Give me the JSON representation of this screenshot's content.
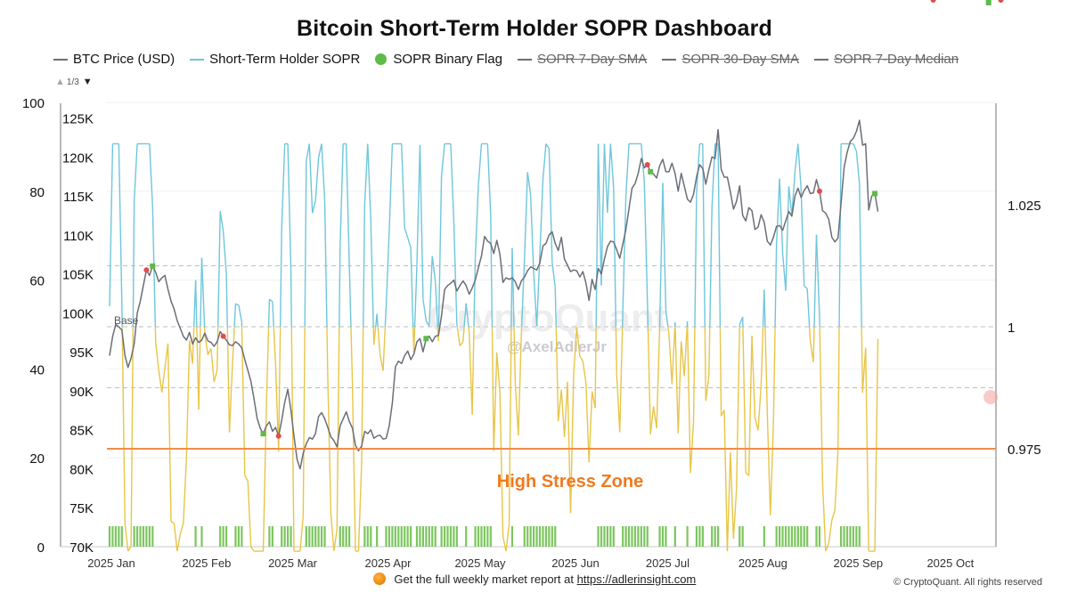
{
  "title": "Bitcoin Short-Term Holder SOPR Dashboard",
  "legend": [
    {
      "label": "BTC Price (USD)",
      "marker": "line",
      "color": "#6b6e78",
      "enabled": true
    },
    {
      "label": "Short-Term Holder SOPR",
      "marker": "line",
      "color": "#6ec6dc",
      "enabled": true
    },
    {
      "label": "SOPR Binary Flag",
      "marker": "dot",
      "color": "#5dbb4a",
      "enabled": true
    },
    {
      "label": "SOPR 7-Day SMA",
      "marker": "line",
      "color": "#6b6e78",
      "enabled": false
    },
    {
      "label": "SOPR 30-Day SMA",
      "marker": "line",
      "color": "#6b6e78",
      "enabled": false
    },
    {
      "label": "SOPR 7-Day Median",
      "marker": "line",
      "color": "#6b6e78",
      "enabled": false
    }
  ],
  "pager": {
    "text": "1/3"
  },
  "footer": {
    "text": "Get the full weekly market report at",
    "link": "https://adlerinsight.com"
  },
  "copyright": "© CryptoQuant. All rights reserved",
  "watermark": {
    "brand": "CryptoQuant",
    "handle": "@AxelAdlerJr"
  },
  "colors": {
    "price": "#6b6e78",
    "sopr_above": "#6ec6dc",
    "sopr_below": "#e8c547",
    "flag_bars": "#7cc65e",
    "buy_marker": "#5dbb4a",
    "sell_marker": "#e04b4b",
    "stress_line": "#f28c4a",
    "stress_text": "#f07a20"
  },
  "chart_data": {
    "type": "line",
    "x_axis": {
      "ticks": [
        "2025 Jan",
        "2025 Feb",
        "2025 Mar",
        "2025 Apr",
        "2025 May",
        "2025 Jun",
        "2025 Jul",
        "2025 Aug",
        "2025 Sep",
        "2025 Oct"
      ]
    },
    "y_left_outer": {
      "ticks": [
        0,
        20,
        40,
        60,
        80,
        100
      ],
      "ylim": [
        0,
        100
      ]
    },
    "y_left_inner": {
      "ticks": [
        "70K",
        "75K",
        "80K",
        "85K",
        "90K",
        "95K",
        "100K",
        "105K",
        "110K",
        "115K",
        "120K",
        "125K"
      ],
      "ylim": [
        70000,
        127000
      ]
    },
    "y_right": {
      "ticks": [
        "0.975",
        "1",
        "1.025"
      ],
      "ylim": [
        0.95,
        1.04
      ]
    },
    "annotations": {
      "base_label": "Base",
      "stress_zone_label": "High Stress Zone",
      "stress_level": 0.975
    },
    "series": [
      {
        "name": "BTC Price (USD)",
        "axis": "y_left_inner",
        "approx_daily_from_jan1": [
          94500,
          97000,
          98500,
          98200,
          97800,
          94500,
          93000,
          94200,
          96000,
          100000,
          101500,
          103500,
          105500,
          104800,
          106000,
          105200,
          104000,
          104500,
          104800,
          103000,
          101500,
          100500,
          99000,
          98000,
          97000,
          96500,
          97500,
          96000,
          96800,
          96200,
          96500,
          97400,
          96400,
          96200,
          95700,
          96300,
          97600,
          97000,
          96500,
          95900,
          95800,
          96300,
          96000,
          95500,
          94000,
          92600,
          91200,
          89000,
          86500,
          85200,
          84500,
          85500,
          86000,
          84800,
          85300,
          84200,
          86200,
          88500,
          90200,
          87500,
          84200,
          81200,
          80000,
          82000,
          83200,
          84000,
          83800,
          84500,
          86700,
          87200,
          86400,
          85300,
          84100,
          83600,
          82800,
          85500,
          86400,
          87300,
          86100,
          85200,
          83000,
          82300,
          82900,
          84800,
          84500,
          85000,
          83900,
          84200,
          84300,
          83800,
          83900,
          85500,
          88400,
          93100,
          93800,
          93500,
          94500,
          95100,
          94000,
          94700,
          96300,
          96700,
          95000,
          96700,
          97000,
          96300,
          97000,
          97100,
          99600,
          103000,
          103500,
          103800,
          104200,
          102800,
          103500,
          104100,
          103500,
          102400,
          103200,
          104200,
          105800,
          107300,
          109800,
          109200,
          108900,
          107600,
          109300,
          107500,
          103900,
          104500,
          104300,
          104500,
          104000,
          103000,
          104100,
          104600,
          105400,
          105900,
          105700,
          105500,
          106400,
          108600,
          108900,
          110000,
          110400,
          108900,
          108000,
          109700,
          106900,
          106100,
          105300,
          105500,
          105400,
          104600,
          105300,
          103800,
          101600,
          104300,
          103000,
          105700,
          105000,
          106900,
          108500,
          109200,
          109100,
          108100,
          107000,
          108800,
          110700,
          113400,
          116000,
          116600,
          117900,
          119800,
          118600,
          119000,
          118100,
          117800,
          117300,
          118900,
          119700,
          118100,
          118100,
          119200,
          117900,
          115600,
          117900,
          116300,
          114600,
          114200,
          115200,
          117500,
          119000,
          118500,
          116500,
          118400,
          120000,
          119800,
          123500,
          118400,
          117400,
          117400,
          115500,
          113300,
          114300,
          116300,
          112500,
          111800,
          113500,
          113100,
          110700,
          111000,
          112600,
          111600,
          109200,
          108700,
          109700,
          111100,
          111200,
          110600,
          111800,
          113000,
          112400,
          115000,
          116000,
          114800,
          115700,
          116300,
          115300,
          115400,
          117100,
          115600,
          113100,
          112800,
          112000,
          109700,
          109100,
          109600,
          114000,
          118700,
          120600,
          122000,
          122400,
          123300,
          124700,
          121500,
          121700,
          113200,
          115000,
          115300,
          113000
        ]
      },
      {
        "name": "Short-Term Holder SOPR",
        "axis": "y_right",
        "threshold": 1,
        "note": "values above 1 drawn blue, below 1 drawn yellow"
      }
    ]
  }
}
